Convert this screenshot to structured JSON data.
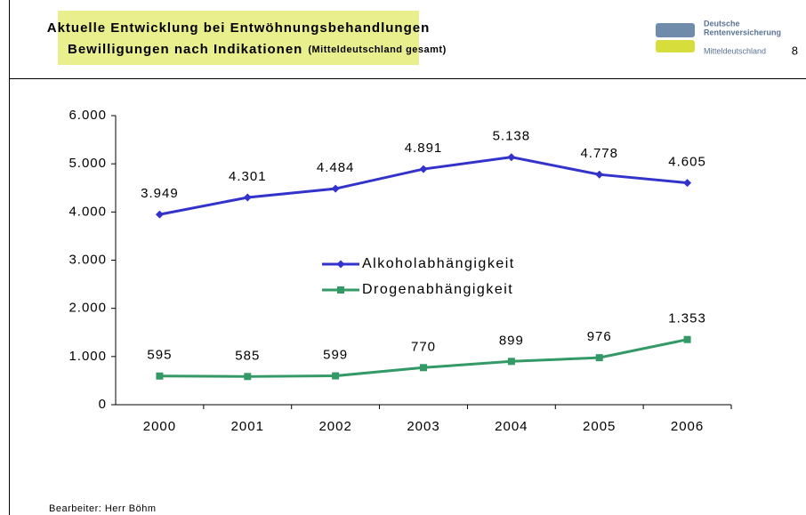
{
  "header": {
    "title_line1": "Aktuelle Entwicklung bei Entwöhnungsbehandlungen",
    "title_line2": "Bewilligungen nach Indikationen",
    "title_note": "(Mitteldeutschland gesamt)"
  },
  "logo": {
    "line1": "Deutsche",
    "line2": "Rentenversicherung",
    "region": "Mitteldeutschland"
  },
  "page_number": "8",
  "footer": "Bearbeiter: Herr Böhm",
  "chart_data": {
    "type": "line",
    "categories": [
      "2000",
      "2001",
      "2002",
      "2003",
      "2004",
      "2005",
      "2006"
    ],
    "series": [
      {
        "name": "Alkoholabhängigkeit",
        "color": "#3333cc",
        "marker": "diamond",
        "values": [
          3949,
          4301,
          4484,
          4891,
          5138,
          4778,
          4605
        ],
        "value_labels": [
          "3.949",
          "4.301",
          "4.484",
          "4.891",
          "5.138",
          "4.778",
          "4.605"
        ]
      },
      {
        "name": "Drogenabhängigkeit",
        "color": "#339966",
        "marker": "square",
        "values": [
          595,
          585,
          599,
          770,
          899,
          976,
          1353
        ],
        "value_labels": [
          "595",
          "585",
          "599",
          "770",
          "899",
          "976",
          "1.353"
        ]
      }
    ],
    "ylim": [
      0,
      6000
    ],
    "yticks": [
      0,
      {
        "value": 1000,
        "label": "1.000"
      },
      {
        "value": 2000,
        "label": "2.000"
      },
      {
        "value": 3000,
        "label": "3.000"
      },
      {
        "value": 4000,
        "label": "4.000"
      },
      {
        "value": 5000,
        "label": "5.000"
      },
      {
        "value": 6000,
        "label": "6.000"
      }
    ],
    "grid": false
  }
}
